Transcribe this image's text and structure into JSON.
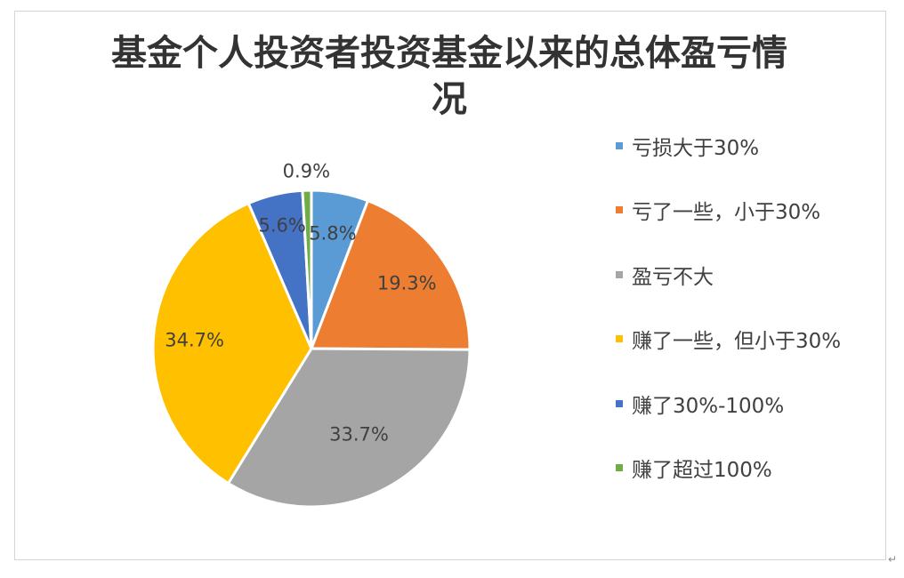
{
  "chart_data": {
    "type": "pie",
    "title": "基金个人投资者投资基金以来的总体盈亏情况",
    "slices": [
      {
        "label": "亏损大于30%",
        "value": 5.8,
        "display": "5.8%",
        "color": "#5b9bd5"
      },
      {
        "label": "亏了一些，小于30%",
        "value": 19.3,
        "display": "19.3%",
        "color": "#ed7d31"
      },
      {
        "label": "盈亏不大",
        "value": 33.7,
        "display": "33.7%",
        "color": "#a5a5a5"
      },
      {
        "label": "赚了一些，但小于30%",
        "value": 34.7,
        "display": "34.7%",
        "color": "#ffc000"
      },
      {
        "label": "赚了30%-100%",
        "value": 5.6,
        "display": "5.6%",
        "color": "#4472c4"
      },
      {
        "label": "赚了超过100%",
        "value": 0.9,
        "display": "0.9%",
        "color": "#70ad47"
      }
    ],
    "legend_position": "right"
  }
}
